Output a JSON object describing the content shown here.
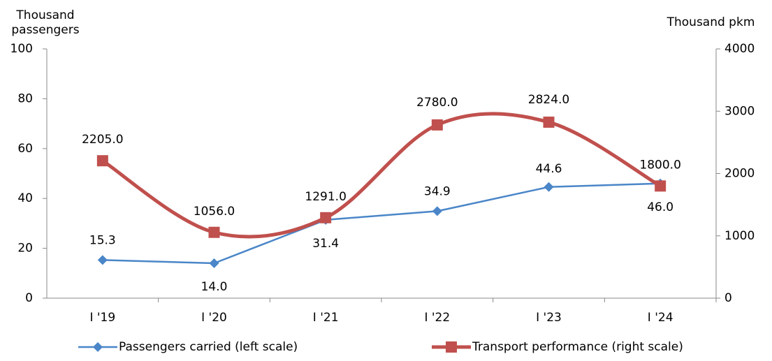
{
  "chart_data": {
    "type": "line",
    "categories": [
      "I '19",
      "I '20",
      "I '21",
      "I '22",
      "I '23",
      "I '24"
    ],
    "series": [
      {
        "name": "Passengers carried (left scale)",
        "color": "#4a86c8",
        "axis": "y",
        "values": [
          15.3,
          14.0,
          31.4,
          34.9,
          44.6,
          46.0
        ],
        "value_labels": [
          "15.3",
          "14.0",
          "31.4",
          "34.9",
          "44.6",
          "46.0"
        ]
      },
      {
        "name": "Transport performance (right scale)",
        "color": "#c0504d",
        "axis": "y2",
        "smooth": true,
        "values": [
          2205.0,
          1056.0,
          1291.0,
          2780.0,
          2824.0,
          1800.0
        ],
        "value_labels": [
          "2205.0",
          "1056.0",
          "1291.0",
          "2780.0",
          "2824.0",
          "1800.0"
        ]
      }
    ],
    "ylabel": "Thousand passengers",
    "y2label": "Thousand pkm",
    "ylim": [
      0,
      100
    ],
    "yticks": [
      0,
      20,
      40,
      60,
      80,
      100
    ],
    "y2lim": [
      0,
      4000
    ],
    "y2ticks": [
      0,
      1000,
      2000,
      3000,
      4000
    ],
    "grid": false,
    "legend": "bottom"
  }
}
